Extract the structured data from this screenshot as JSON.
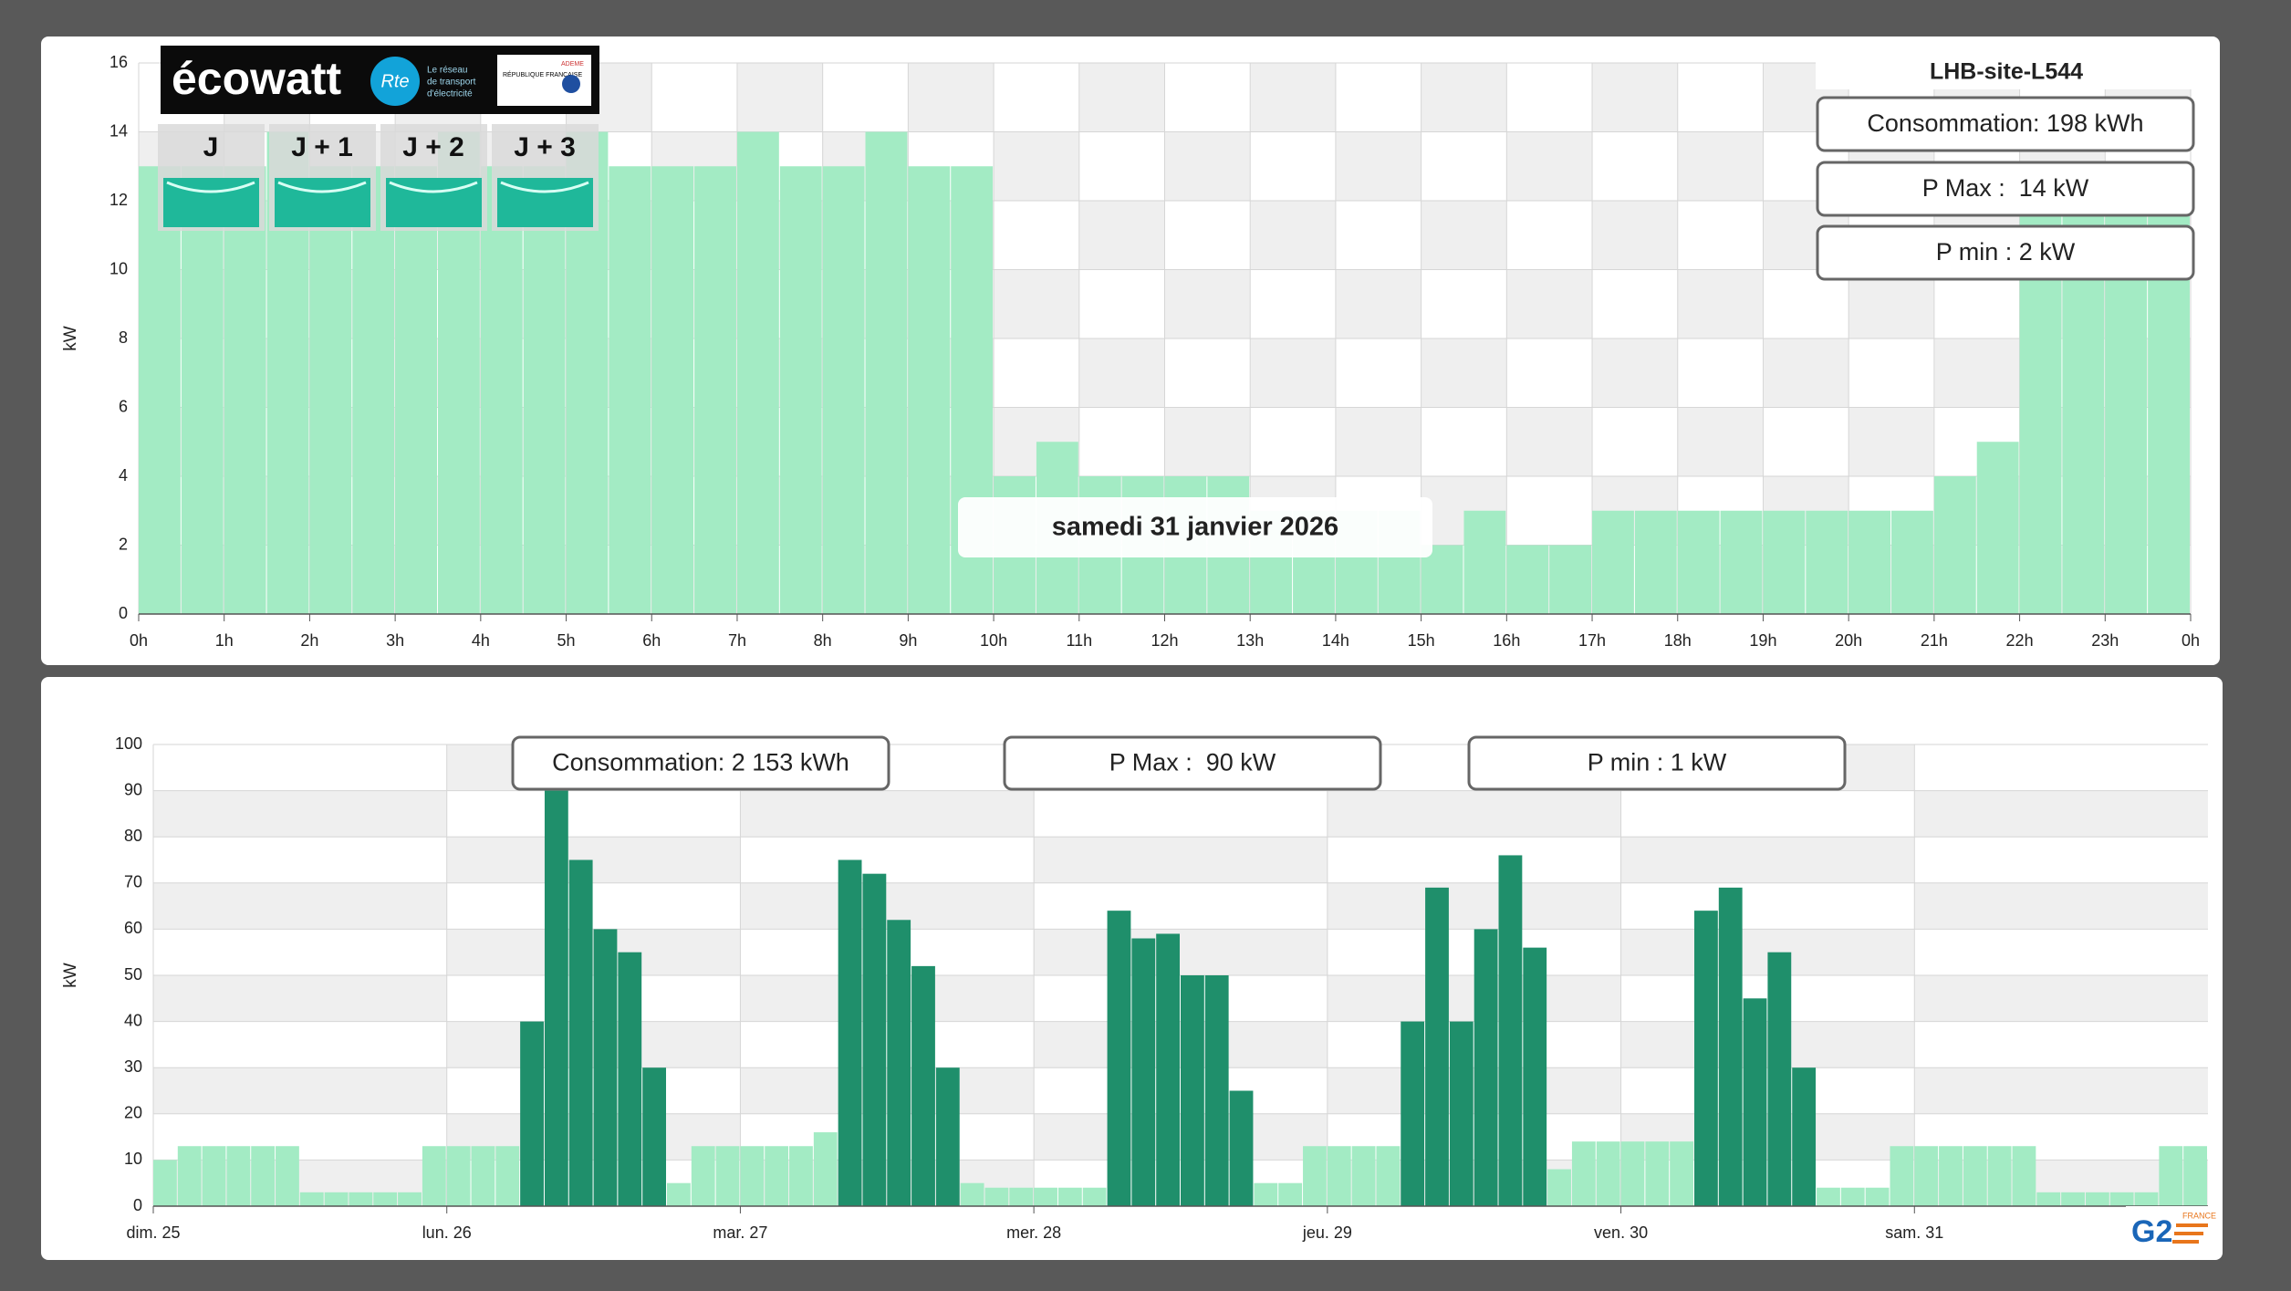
{
  "chart_data": [
    {
      "type": "bar",
      "title": "LHB-site-L544",
      "date": "samedi 31 janvier 2026",
      "annotations": [
        "Consommation: 198 kWh",
        "P Max :  14 kW",
        "P min : 2 kW"
      ],
      "ylabel": "kW",
      "x": [
        0,
        0.5,
        1,
        1.5,
        2,
        2.5,
        3,
        3.5,
        4,
        4.5,
        5,
        5.5,
        6,
        6.5,
        7,
        7.5,
        8,
        8.5,
        9,
        9.5,
        10,
        10.5,
        11,
        11.5,
        12,
        12.5,
        13,
        13.5,
        14,
        14.5,
        15,
        15.5,
        16,
        16.5,
        17,
        17.5,
        18,
        18.5,
        19,
        19.5,
        20,
        20.5,
        21,
        21.5,
        22,
        22.5,
        23,
        23.5
      ],
      "series": [
        {
          "color": "#a3ebc4",
          "values": [
            13,
            13,
            13,
            14,
            13,
            13,
            13,
            14,
            13,
            13,
            14,
            13,
            13,
            13,
            14,
            13,
            13,
            14,
            13,
            13,
            4,
            5,
            4,
            4,
            4,
            4,
            3,
            3,
            3,
            3,
            2,
            3,
            2,
            2,
            3,
            3,
            3,
            3,
            3,
            3,
            3,
            3,
            4,
            5,
            12,
            12,
            12,
            12
          ]
        }
      ],
      "xlim": [
        0,
        24
      ],
      "xticks": [
        {
          "value": 0,
          "label": "0h"
        },
        {
          "value": 1,
          "label": "1h"
        },
        {
          "value": 2,
          "label": "2h"
        },
        {
          "value": 3,
          "label": "3h"
        },
        {
          "value": 4,
          "label": "4h"
        },
        {
          "value": 5,
          "label": "5h"
        },
        {
          "value": 6,
          "label": "6h"
        },
        {
          "value": 7,
          "label": "7h"
        },
        {
          "value": 8,
          "label": "8h"
        },
        {
          "value": 9,
          "label": "9h"
        },
        {
          "value": 10,
          "label": "10h"
        },
        {
          "value": 11,
          "label": "11h"
        },
        {
          "value": 12,
          "label": "12h"
        },
        {
          "value": 13,
          "label": "13h"
        },
        {
          "value": 14,
          "label": "14h"
        },
        {
          "value": 15,
          "label": "15h"
        },
        {
          "value": 16,
          "label": "16h"
        },
        {
          "value": 17,
          "label": "17h"
        },
        {
          "value": 18,
          "label": "18h"
        },
        {
          "value": 19,
          "label": "19h"
        },
        {
          "value": 20,
          "label": "20h"
        },
        {
          "value": 21,
          "label": "21h"
        },
        {
          "value": 22,
          "label": "22h"
        },
        {
          "value": 23,
          "label": "23h"
        },
        {
          "value": 24,
          "label": "0h"
        }
      ],
      "ylim": [
        0,
        16
      ],
      "yticks": [
        0,
        2,
        4,
        6,
        8,
        10,
        12,
        14,
        16
      ],
      "grid": true
    },
    {
      "type": "bar",
      "annotations": [
        "Consommation: 2 153 kWh",
        "P Max :  90 kW",
        "P min : 1 kW"
      ],
      "ylabel": "kW",
      "x": [
        0,
        2,
        4,
        6,
        8,
        10,
        12,
        14,
        16,
        18,
        20,
        22,
        24,
        26,
        28,
        30,
        32,
        34,
        36,
        38,
        40,
        42,
        44,
        46,
        48,
        50,
        52,
        54,
        56,
        58,
        60,
        62,
        64,
        66,
        68,
        70,
        72,
        74,
        76,
        78,
        80,
        82,
        84,
        86,
        88,
        90,
        92,
        94,
        96,
        98,
        100,
        102,
        104,
        106,
        108,
        110,
        112,
        114,
        116,
        118,
        120,
        122,
        124,
        126,
        128,
        130,
        132,
        134,
        136,
        138,
        140,
        142,
        144,
        146,
        148,
        150,
        152,
        154,
        156,
        158,
        160,
        162,
        164,
        166
      ],
      "series": [
        {
          "color": "#a3ebc4",
          "values": [
            10,
            13,
            13,
            13,
            13,
            13,
            3,
            3,
            3,
            3,
            3,
            13,
            13,
            13,
            13,
            null,
            null,
            null,
            null,
            null,
            null,
            5,
            13,
            13,
            13,
            13,
            13,
            16,
            null,
            null,
            null,
            null,
            null,
            5,
            4,
            4,
            4,
            4,
            4,
            null,
            null,
            null,
            null,
            null,
            null,
            5,
            5,
            13,
            13,
            13,
            13,
            null,
            null,
            null,
            null,
            null,
            null,
            8,
            14,
            14,
            14,
            14,
            14,
            null,
            null,
            null,
            null,
            null,
            4,
            4,
            4,
            13,
            13,
            13,
            13,
            13,
            13,
            3,
            3,
            3,
            3,
            3,
            13,
            13
          ]
        },
        {
          "color": "#1f8f6b",
          "values": [
            null,
            null,
            null,
            null,
            null,
            null,
            null,
            null,
            null,
            null,
            null,
            null,
            null,
            null,
            null,
            40,
            90,
            75,
            60,
            55,
            30,
            null,
            null,
            null,
            null,
            null,
            null,
            null,
            75,
            72,
            62,
            52,
            30,
            null,
            null,
            null,
            null,
            null,
            null,
            64,
            58,
            59,
            50,
            50,
            25,
            null,
            null,
            null,
            null,
            null,
            null,
            40,
            69,
            40,
            60,
            76,
            56,
            null,
            null,
            null,
            null,
            null,
            null,
            64,
            69,
            45,
            55,
            30,
            null,
            null,
            null,
            null,
            null,
            null,
            null,
            null,
            null,
            null,
            null,
            null,
            null,
            null,
            null,
            null
          ]
        }
      ],
      "xlim": [
        0,
        168
      ],
      "xticks": [
        {
          "value": 0,
          "label": "dim. 25"
        },
        {
          "value": 24,
          "label": "lun. 26"
        },
        {
          "value": 48,
          "label": "mar. 27"
        },
        {
          "value": 72,
          "label": "mer. 28"
        },
        {
          "value": 96,
          "label": "jeu. 29"
        },
        {
          "value": 120,
          "label": "ven. 30"
        },
        {
          "value": 144,
          "label": "sam. 31"
        }
      ],
      "ylim": [
        0,
        100
      ],
      "yticks": [
        0,
        10,
        20,
        30,
        40,
        50,
        60,
        70,
        80,
        90,
        100
      ],
      "grid": true
    }
  ],
  "ecowatt": {
    "brand": "écowatt",
    "rte": "Rte",
    "rte_tagline": [
      "Le réseau",
      "de transport",
      "d'électricité"
    ],
    "republic": "RÉPUBLIQUE FRANÇAISE",
    "ademe": "ADEME",
    "days": [
      "J",
      "J + 1",
      "J + 2",
      "J + 3"
    ]
  },
  "logo": {
    "text": "G2",
    "sub": "FRANCE"
  }
}
